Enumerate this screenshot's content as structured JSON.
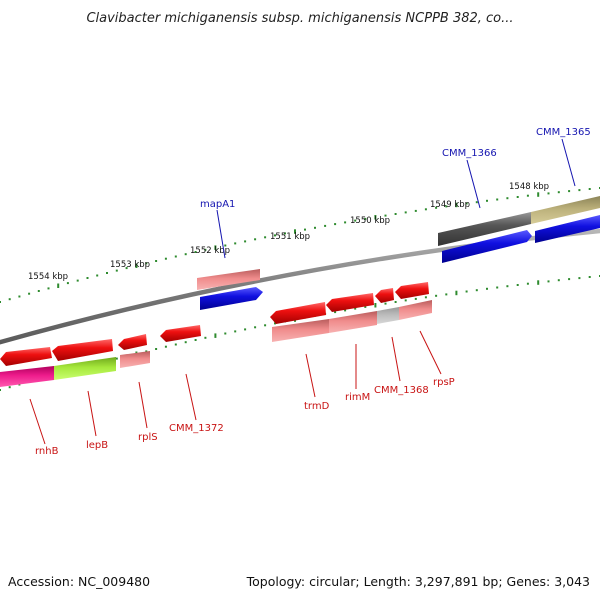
{
  "title": "Clavibacter michiganensis subsp. michiganensis NCPPB 382, co...",
  "footer": {
    "accession": "Accession: NC_009480",
    "summary": "Topology: circular; Length: 3,297,891 bp; Genes: 3,043"
  },
  "ruler": {
    "ticks": [
      {
        "label": "1554 kbp"
      },
      {
        "label": "1553 kbp"
      },
      {
        "label": "1552 kbp"
      },
      {
        "label": "1551 kbp"
      },
      {
        "label": "1550 kbp"
      },
      {
        "label": "1549 kbp"
      },
      {
        "label": "1548 kbp"
      }
    ]
  },
  "colors": {
    "backbone": "#8a8a8a",
    "tick": "#2e8b2e",
    "label_top": "#1515b0",
    "label_bottom": "#c81414",
    "gene_red": "#ee1010",
    "gene_pink": "#ee8888",
    "gene_blue": "#1010e0",
    "gene_gray": "#606060",
    "gene_olive": "#bbb07a",
    "gene_magenta": "#ee1c8c",
    "gene_lime": "#a6e83c",
    "gene_lightgray": "#b8b8b8"
  },
  "labels_top": [
    {
      "name": "mapA1"
    },
    {
      "name": "CMM_1366"
    },
    {
      "name": "CMM_1365"
    }
  ],
  "labels_bottom": [
    {
      "name": "rnhB"
    },
    {
      "name": "lepB"
    },
    {
      "name": "rplS"
    },
    {
      "name": "CMM_1372"
    },
    {
      "name": "trmD"
    },
    {
      "name": "rimM"
    },
    {
      "name": "CMM_1368"
    },
    {
      "name": "rpsP"
    }
  ]
}
